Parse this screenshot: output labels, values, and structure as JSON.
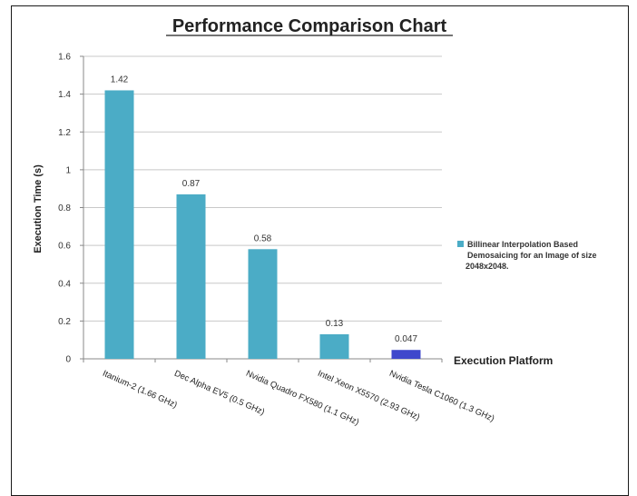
{
  "chart_data": {
    "type": "bar",
    "title": "Performance Comparison Chart",
    "ylabel": "Execution Time (s)",
    "xlabel": "Execution Platform",
    "categories": [
      "Itanium-2 (1.66 GHz)",
      "Dec Alpha EV5 (0.5 GHz)",
      "Nvidia Quadro FX580 (1.1 GHz)",
      "Intel Xeon X5570 (2.93 GHz)",
      "Nvidia Tesla C1060 (1.3 GHz)"
    ],
    "values": [
      1.42,
      0.87,
      0.58,
      0.13,
      0.047
    ],
    "data_labels": [
      "1.42",
      "0.87",
      "0.58",
      "0.13",
      "0.047"
    ],
    "bar_colors": [
      "#4bacc6",
      "#4bacc6",
      "#4bacc6",
      "#4bacc6",
      "#3f48cc"
    ],
    "ylim": [
      0,
      1.6
    ],
    "yticks": [
      "0",
      "0.2",
      "0.4",
      "0.6",
      "0.8",
      "1",
      "1.2",
      "1.4",
      "1.6"
    ],
    "grid": true,
    "legend": {
      "placement": "right",
      "color": "#4bacc6",
      "lines": [
        "Billinear Interpolation Based",
        "Demosaicing for an Image of size",
        "2048x2048."
      ]
    }
  }
}
